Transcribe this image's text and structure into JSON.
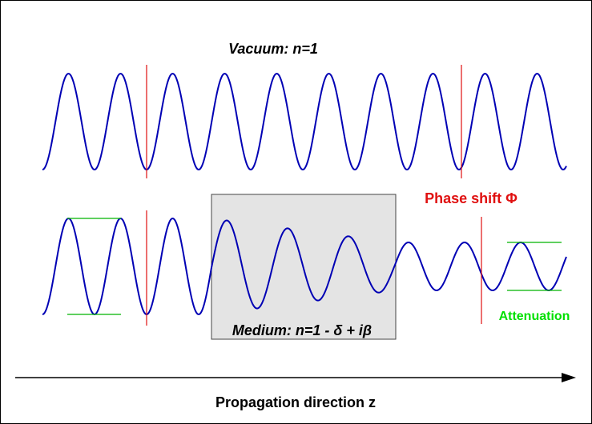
{
  "labels": {
    "vacuum": "Vacuum: n=1",
    "medium": "Medium: n=1 - δ + iβ",
    "phase_shift": "Phase shift Φ",
    "attenuation": "Attenuation",
    "propagation": "Propagation direction z"
  },
  "colors": {
    "wave": "#0000b4",
    "marker": "#e01010",
    "amplitude_guide": "#00b400",
    "attenuation_text": "#00e000",
    "medium_fill": "#e4e4e4",
    "text": "#000000"
  },
  "icons": {
    "axis_arrow": "right-arrow-icon"
  }
}
